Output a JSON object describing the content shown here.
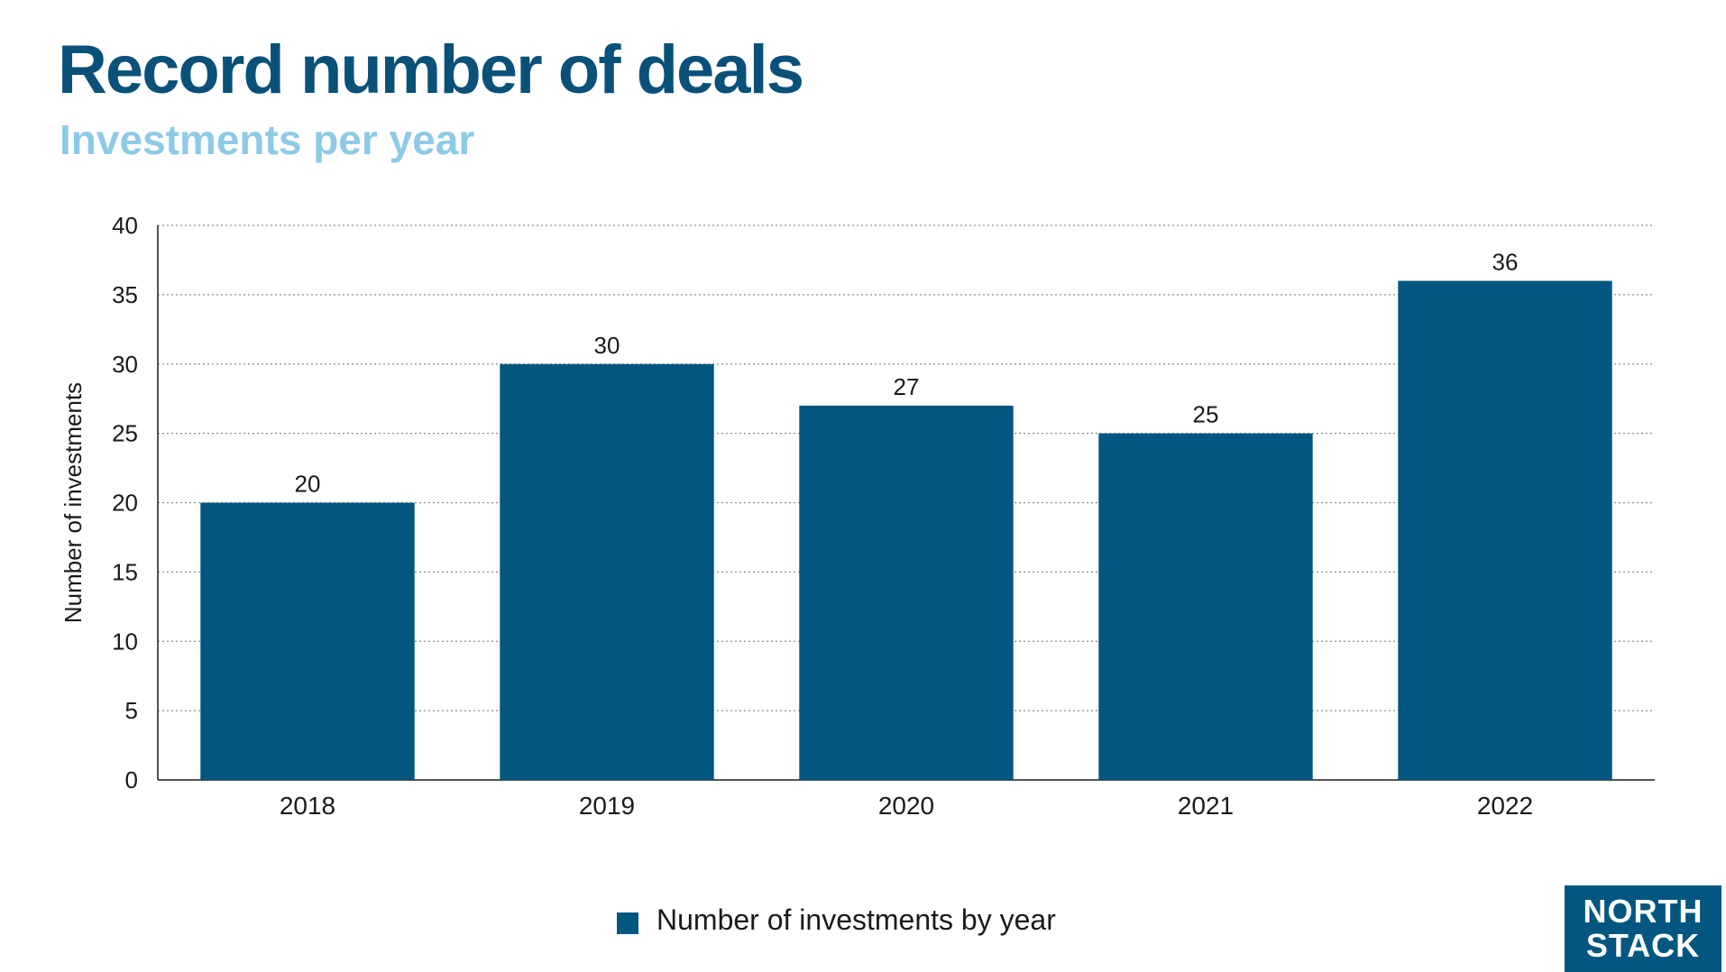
{
  "title": "Record number of deals",
  "subtitle": "Investments per year",
  "colors": {
    "title": "#0a5179",
    "subtitle": "#8ecae6",
    "bar": "#02567f",
    "grid": "#8c8c8c",
    "axis": "#1a1a1a",
    "logo_bg": "#02567f"
  },
  "legend": {
    "label": "Number of investments by year"
  },
  "logo": {
    "line1": "NORTH",
    "line2": "STACK"
  },
  "chart_data": {
    "type": "bar",
    "title": "Record number of deals",
    "subtitle": "Investments per year",
    "categories": [
      "2018",
      "2019",
      "2020",
      "2021",
      "2022"
    ],
    "series": [
      {
        "name": "Number of investments by year",
        "values": [
          20,
          30,
          27,
          25,
          36
        ]
      }
    ],
    "xlabel": "",
    "ylabel": "Number of investments",
    "ylim": [
      0,
      40
    ],
    "yticks": [
      0,
      5,
      10,
      15,
      20,
      25,
      30,
      35,
      40
    ],
    "grid": "horizontal dotted",
    "data_labels": true,
    "legend_position": "bottom-center"
  }
}
